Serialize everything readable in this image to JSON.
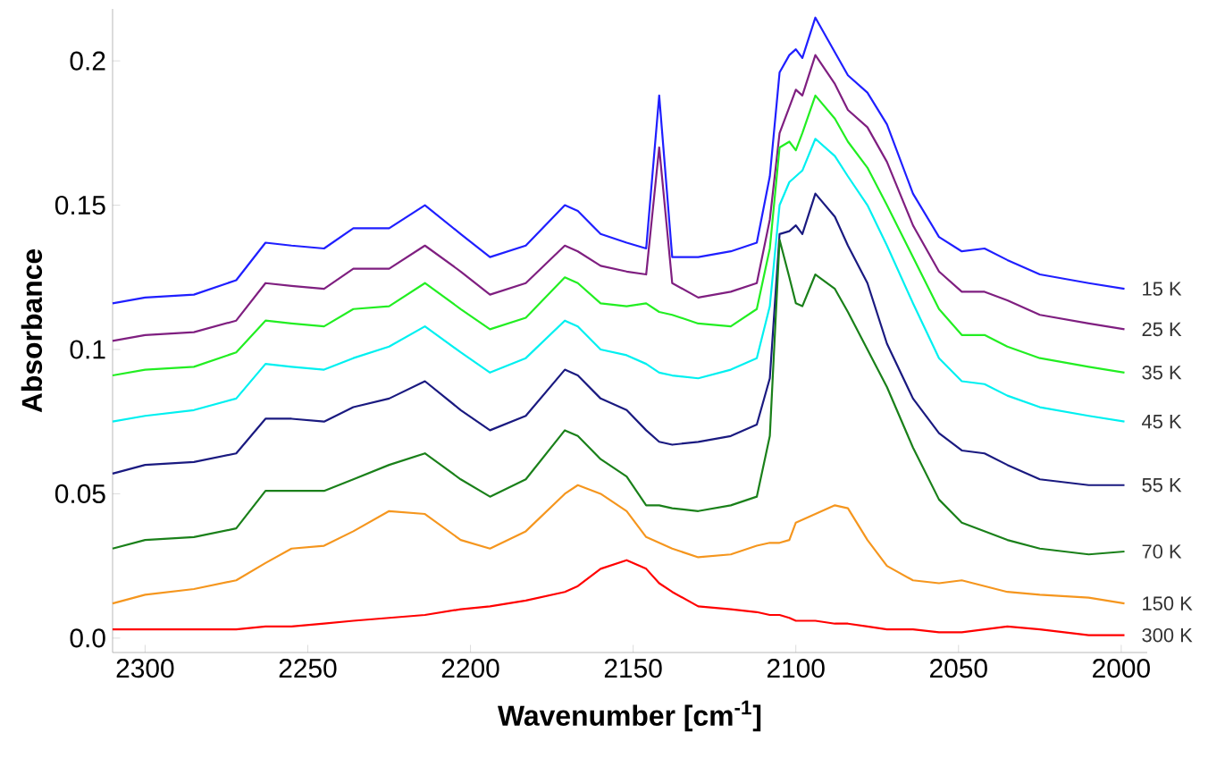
{
  "chart_data": {
    "type": "line",
    "xlabel": "Wavenumber [cm$^{-1}$]",
    "ylabel": "Absorbance",
    "xlim": [
      2310,
      1992
    ],
    "ylim": [
      -0.005,
      0.218
    ],
    "xticks": [
      2300,
      2250,
      2200,
      2150,
      2100,
      2050,
      2000
    ],
    "yticks": [
      {
        "value": 0,
        "label": "0.0"
      },
      0.05,
      0.1,
      0.15,
      0.2
    ],
    "x": [
      2310,
      2300,
      2285,
      2272,
      2263,
      2255,
      2245,
      2236,
      2225,
      2214,
      2203,
      2194,
      2183,
      2171,
      2167,
      2160,
      2152,
      2146,
      2142,
      2138,
      2130,
      2120,
      2112,
      2108,
      2105,
      2102,
      2100,
      2098,
      2094,
      2088,
      2084,
      2078,
      2072,
      2064,
      2056,
      2049,
      2042,
      2035,
      2025,
      2010,
      1999
    ],
    "series": [
      {
        "name": "15 K",
        "color": "#1f1fff",
        "values": [
          0.116,
          0.118,
          0.119,
          0.124,
          0.137,
          0.136,
          0.135,
          0.142,
          0.142,
          0.15,
          0.14,
          0.132,
          0.136,
          0.15,
          0.148,
          0.14,
          0.137,
          0.135,
          0.188,
          0.132,
          0.132,
          0.134,
          0.137,
          0.16,
          0.196,
          0.202,
          0.204,
          0.201,
          0.215,
          0.203,
          0.195,
          0.189,
          0.178,
          0.154,
          0.139,
          0.134,
          0.135,
          0.131,
          0.126,
          0.123,
          0.121
        ]
      },
      {
        "name": "25 K",
        "color": "#7f1f80",
        "values": [
          0.103,
          0.105,
          0.106,
          0.11,
          0.123,
          0.122,
          0.121,
          0.128,
          0.128,
          0.136,
          0.127,
          0.119,
          0.123,
          0.136,
          0.134,
          0.129,
          0.127,
          0.126,
          0.17,
          0.123,
          0.118,
          0.12,
          0.123,
          0.145,
          0.175,
          0.184,
          0.19,
          0.188,
          0.202,
          0.192,
          0.183,
          0.177,
          0.165,
          0.143,
          0.127,
          0.12,
          0.12,
          0.117,
          0.112,
          0.109,
          0.107
        ]
      },
      {
        "name": "35 K",
        "color": "#22ee22",
        "values": [
          0.091,
          0.093,
          0.094,
          0.099,
          0.11,
          0.109,
          0.108,
          0.114,
          0.115,
          0.123,
          0.114,
          0.107,
          0.111,
          0.125,
          0.123,
          0.116,
          0.115,
          0.116,
          0.113,
          0.112,
          0.109,
          0.108,
          0.114,
          0.135,
          0.17,
          0.172,
          0.169,
          0.175,
          0.188,
          0.18,
          0.172,
          0.163,
          0.15,
          0.132,
          0.114,
          0.105,
          0.105,
          0.101,
          0.097,
          0.094,
          0.092
        ]
      },
      {
        "name": "45 K",
        "color": "#00f0f0",
        "values": [
          0.075,
          0.077,
          0.079,
          0.083,
          0.095,
          0.094,
          0.093,
          0.097,
          0.101,
          0.108,
          0.099,
          0.092,
          0.097,
          0.11,
          0.108,
          0.1,
          0.098,
          0.095,
          0.092,
          0.091,
          0.09,
          0.093,
          0.097,
          0.115,
          0.15,
          0.158,
          0.16,
          0.162,
          0.173,
          0.167,
          0.16,
          0.15,
          0.136,
          0.116,
          0.097,
          0.089,
          0.088,
          0.084,
          0.08,
          0.077,
          0.075
        ]
      },
      {
        "name": "55 K",
        "color": "#1a1a80",
        "values": [
          0.057,
          0.06,
          0.061,
          0.064,
          0.076,
          0.076,
          0.075,
          0.08,
          0.083,
          0.089,
          0.079,
          0.072,
          0.077,
          0.093,
          0.091,
          0.083,
          0.079,
          0.072,
          0.068,
          0.067,
          0.068,
          0.07,
          0.074,
          0.09,
          0.14,
          0.141,
          0.143,
          0.14,
          0.154,
          0.146,
          0.136,
          0.123,
          0.102,
          0.083,
          0.071,
          0.065,
          0.064,
          0.06,
          0.055,
          0.053,
          0.053
        ]
      },
      {
        "name": "70 K",
        "color": "#1a801a",
        "values": [
          0.031,
          0.034,
          0.035,
          0.038,
          0.051,
          0.051,
          0.051,
          0.055,
          0.06,
          0.064,
          0.055,
          0.049,
          0.055,
          0.072,
          0.07,
          0.062,
          0.056,
          0.046,
          0.046,
          0.045,
          0.044,
          0.046,
          0.049,
          0.07,
          0.138,
          0.125,
          0.116,
          0.115,
          0.126,
          0.121,
          0.113,
          0.1,
          0.087,
          0.066,
          0.048,
          0.04,
          0.037,
          0.034,
          0.031,
          0.029,
          0.03
        ]
      },
      {
        "name": "150 K",
        "color": "#f5961e",
        "values": [
          0.012,
          0.015,
          0.017,
          0.02,
          0.026,
          0.031,
          0.032,
          0.037,
          0.044,
          0.043,
          0.034,
          0.031,
          0.037,
          0.05,
          0.053,
          0.05,
          0.044,
          0.035,
          0.033,
          0.031,
          0.028,
          0.029,
          0.032,
          0.033,
          0.033,
          0.034,
          0.04,
          0.041,
          0.043,
          0.046,
          0.045,
          0.034,
          0.025,
          0.02,
          0.019,
          0.02,
          0.018,
          0.016,
          0.015,
          0.014,
          0.012
        ]
      },
      {
        "name": "300 K",
        "color": "#ff0000",
        "values": [
          0.003,
          0.003,
          0.003,
          0.003,
          0.004,
          0.004,
          0.005,
          0.006,
          0.007,
          0.008,
          0.01,
          0.011,
          0.013,
          0.016,
          0.018,
          0.024,
          0.027,
          0.024,
          0.019,
          0.016,
          0.011,
          0.01,
          0.009,
          0.008,
          0.008,
          0.007,
          0.006,
          0.006,
          0.006,
          0.005,
          0.005,
          0.004,
          0.003,
          0.003,
          0.002,
          0.002,
          0.003,
          0.004,
          0.003,
          0.001,
          0.001
        ]
      }
    ]
  }
}
